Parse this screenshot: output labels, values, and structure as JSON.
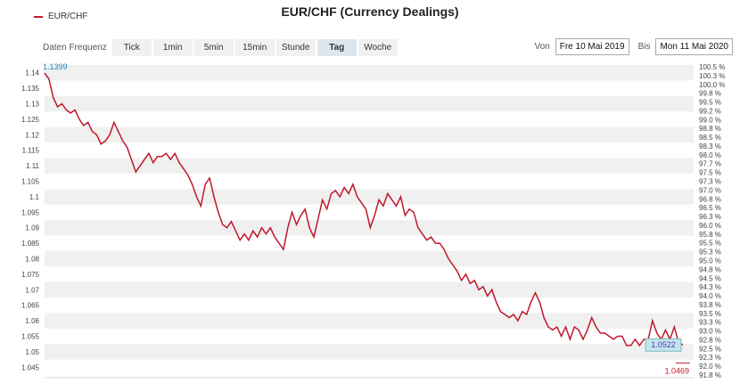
{
  "title": "EUR/CHF (Currency Dealings)",
  "legend": {
    "series_name": "EUR/CHF",
    "color": "#c0182b"
  },
  "toolbar": {
    "label": "Daten Frequenz",
    "tabs": [
      "Tick",
      "1min",
      "5min",
      "15min",
      "Stunde",
      "Tag",
      "Woche"
    ],
    "active_tab": "Tag"
  },
  "range": {
    "from_label": "Von",
    "from_value": "Fre 10 Mai 2019",
    "to_label": "Bis",
    "to_value": "Mon 11 Mai 2020"
  },
  "chart_data": {
    "type": "line",
    "title": "EUR/CHF (Currency Dealings)",
    "series_name": "EUR/CHF",
    "ylim": [
      1.0425,
      1.1425
    ],
    "left_ticks": [
      "1.14",
      "1.135",
      "1.13",
      "1.125",
      "1.12",
      "1.115",
      "1.11",
      "1.105",
      "1.1",
      "1.095",
      "1.09",
      "1.085",
      "1.08",
      "1.075",
      "1.07",
      "1.065",
      "1.06",
      "1.055",
      "1.05",
      "1.045"
    ],
    "right_ticks": [
      "100.5 %",
      "100.3 %",
      "100.0 %",
      "99.8 %",
      "99.5 %",
      "99.2 %",
      "99.0 %",
      "98.8 %",
      "98.5 %",
      "98.3 %",
      "98.0 %",
      "97.7 %",
      "97.5 %",
      "97.3 %",
      "97.0 %",
      "96.8 %",
      "96.5 %",
      "96.3 %",
      "96.0 %",
      "95.8 %",
      "95.5 %",
      "95.3 %",
      "95.0 %",
      "94.8 %",
      "94.5 %",
      "94.3 %",
      "94.0 %",
      "93.8 %",
      "93.5 %",
      "93.3 %",
      "93.0 %",
      "92.8 %",
      "92.5 %",
      "92.3 %",
      "92.0 %",
      "91.8 %"
    ],
    "annotations": {
      "start": "1.1399",
      "last": "1.0522",
      "low": "1.0469"
    },
    "values": [
      1.1399,
      1.138,
      1.132,
      1.129,
      1.13,
      1.128,
      1.127,
      1.128,
      1.125,
      1.123,
      1.124,
      1.121,
      1.12,
      1.117,
      1.118,
      1.12,
      1.124,
      1.121,
      1.118,
      1.116,
      1.112,
      1.108,
      1.11,
      1.112,
      1.114,
      1.111,
      1.113,
      1.113,
      1.114,
      1.112,
      1.114,
      1.111,
      1.109,
      1.107,
      1.104,
      1.1,
      1.097,
      1.104,
      1.106,
      1.1,
      1.095,
      1.091,
      1.09,
      1.092,
      1.089,
      1.086,
      1.088,
      1.086,
      1.089,
      1.087,
      1.09,
      1.088,
      1.09,
      1.087,
      1.085,
      1.083,
      1.09,
      1.095,
      1.091,
      1.094,
      1.096,
      1.09,
      1.087,
      1.093,
      1.099,
      1.096,
      1.101,
      1.102,
      1.1,
      1.103,
      1.101,
      1.104,
      1.1,
      1.098,
      1.096,
      1.09,
      1.094,
      1.099,
      1.097,
      1.101,
      1.099,
      1.097,
      1.1,
      1.094,
      1.096,
      1.095,
      1.09,
      1.088,
      1.086,
      1.087,
      1.085,
      1.085,
      1.083,
      1.08,
      1.078,
      1.076,
      1.073,
      1.075,
      1.072,
      1.073,
      1.07,
      1.071,
      1.068,
      1.07,
      1.066,
      1.063,
      1.062,
      1.061,
      1.062,
      1.06,
      1.063,
      1.062,
      1.066,
      1.069,
      1.066,
      1.061,
      1.058,
      1.057,
      1.058,
      1.055,
      1.058,
      1.054,
      1.058,
      1.057,
      1.054,
      1.057,
      1.061,
      1.058,
      1.056,
      1.056,
      1.055,
      1.054,
      1.055,
      1.055,
      1.052,
      1.052,
      1.054,
      1.052,
      1.054,
      1.054,
      1.06,
      1.056,
      1.054,
      1.057,
      1.054,
      1.058,
      1.053,
      1.0522
    ]
  }
}
